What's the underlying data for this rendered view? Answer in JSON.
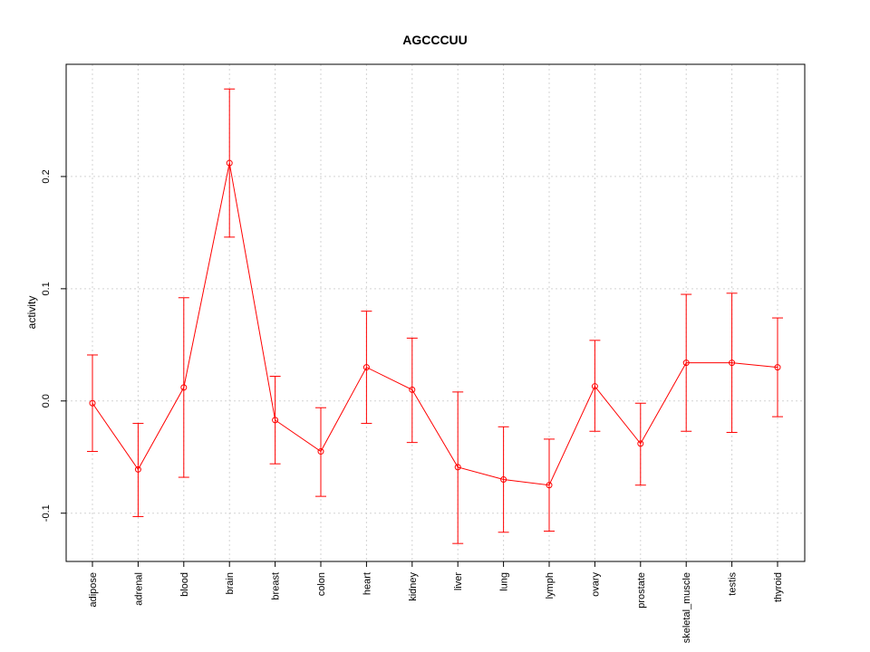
{
  "chart_data": {
    "type": "line",
    "title": "AGCCCUU",
    "xlabel": "",
    "ylabel": "activity",
    "ylim": [
      -0.143,
      0.3
    ],
    "yticks": [
      -0.1,
      0.0,
      0.1,
      0.2
    ],
    "ytick_labels": [
      "-0.1",
      "0.0",
      "0.1",
      "0.2"
    ],
    "grid": true,
    "colors": {
      "series": "#ff0000",
      "grid": "#d3d3d3",
      "axis": "#000000"
    },
    "categories": [
      "adipose",
      "adrenal",
      "blood",
      "brain",
      "breast",
      "colon",
      "heart",
      "kidney",
      "liver",
      "lung",
      "lymph",
      "ovary",
      "prostate",
      "skeletal_muscle",
      "testis",
      "thyroid"
    ],
    "series": [
      {
        "name": "activity",
        "values": [
          -0.002,
          -0.061,
          0.012,
          0.212,
          -0.017,
          -0.045,
          0.03,
          0.01,
          -0.059,
          -0.07,
          -0.075,
          0.013,
          -0.038,
          0.034,
          0.034,
          0.03
        ],
        "upper": [
          0.041,
          -0.02,
          0.092,
          0.278,
          0.022,
          -0.006,
          0.08,
          0.056,
          0.008,
          -0.023,
          -0.034,
          0.054,
          -0.002,
          0.095,
          0.096,
          0.074
        ],
        "lower": [
          -0.045,
          -0.103,
          -0.068,
          0.146,
          -0.056,
          -0.085,
          -0.02,
          -0.037,
          -0.127,
          -0.117,
          -0.116,
          -0.027,
          -0.075,
          -0.027,
          -0.028,
          -0.014
        ]
      }
    ]
  }
}
